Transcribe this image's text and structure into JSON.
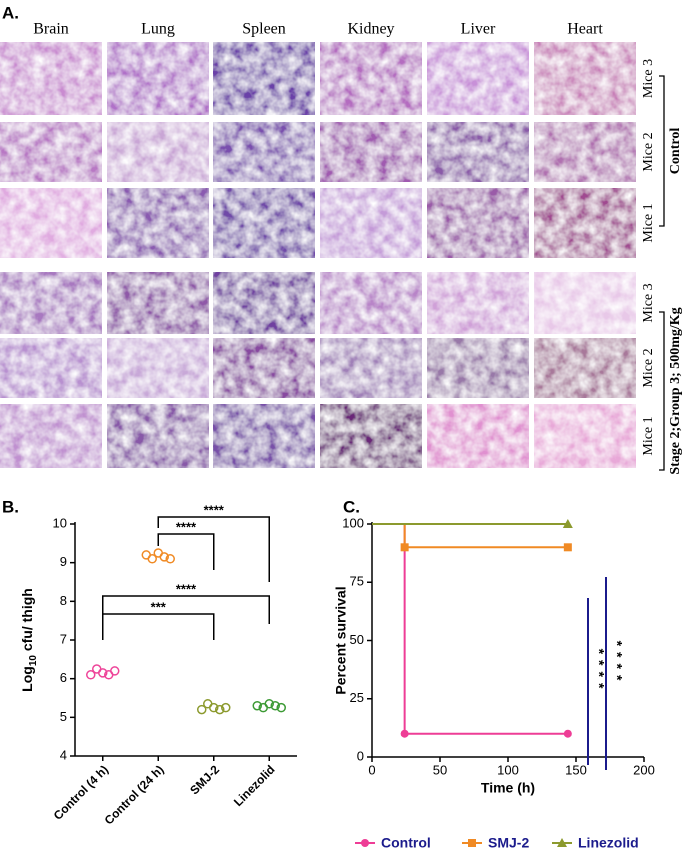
{
  "panel_a": {
    "label": "A.",
    "columns": [
      "Brain",
      "Lung",
      "Spleen",
      "Kidney",
      "Liver",
      "Heart"
    ],
    "rows": [
      "Mice 3",
      "Mice 2",
      "Mice 1",
      "Mice 3",
      "Mice 2",
      "Mice 1"
    ],
    "groups": [
      "Control",
      "Stage 2;Group 3; 500mg/Kg"
    ]
  },
  "chart_data": [
    {
      "panel_label": "B.",
      "type": "strip",
      "ylabel": [
        "Log",
        "10",
        " cfu/ thigh"
      ],
      "categories": [
        "Control (4 h)",
        "Control (24 h)",
        "SMJ-2",
        "Linezolid"
      ],
      "colors": [
        "#ee4499",
        "#f08a24",
        "#8c9a2e",
        "#3c9a34"
      ],
      "values": [
        [
          6.1,
          6.25,
          6.15,
          6.1,
          6.2
        ],
        [
          9.2,
          9.1,
          9.25,
          9.15,
          9.1
        ],
        [
          5.2,
          5.35,
          5.25,
          5.2,
          5.25
        ],
        [
          5.3,
          5.25,
          5.35,
          5.3,
          5.25
        ]
      ],
      "ylim": [
        4,
        10
      ],
      "yticks": [
        4,
        5,
        6,
        7,
        8,
        9,
        10
      ],
      "comparisons": [
        {
          "pair": [
            "Control (24 h)",
            "Linezolid"
          ],
          "label": "****"
        },
        {
          "pair": [
            "Control (24 h)",
            "SMJ-2"
          ],
          "label": "****"
        },
        {
          "pair": [
            "Control (4 h)",
            "Linezolid"
          ],
          "label": "****"
        },
        {
          "pair": [
            "Control (4 h)",
            "SMJ-2"
          ],
          "label": "***"
        }
      ]
    },
    {
      "panel_label": "C.",
      "type": "line",
      "xlabel": "Time (h)",
      "ylabel": "Percent survival",
      "xlim": [
        0,
        200
      ],
      "xticks": [
        0,
        50,
        100,
        150,
        200
      ],
      "ylim": [
        0,
        100
      ],
      "yticks": [
        0,
        25,
        50,
        75,
        100
      ],
      "series": [
        {
          "name": "Control",
          "color": "#ee3d96",
          "marker": "circle",
          "x": [
            0,
            24,
            24,
            144
          ],
          "values": [
            100,
            100,
            10,
            10
          ]
        },
        {
          "name": "SMJ-2",
          "color": "#f08a24",
          "marker": "square",
          "x": [
            0,
            24,
            24,
            144
          ],
          "values": [
            100,
            100,
            90,
            90
          ]
        },
        {
          "name": "Linezolid",
          "color": "#8c9a2e",
          "marker": "triangle",
          "x": [
            0,
            144
          ],
          "values": [
            100,
            100
          ]
        }
      ],
      "annotations": [
        "****",
        "****"
      ]
    }
  ]
}
